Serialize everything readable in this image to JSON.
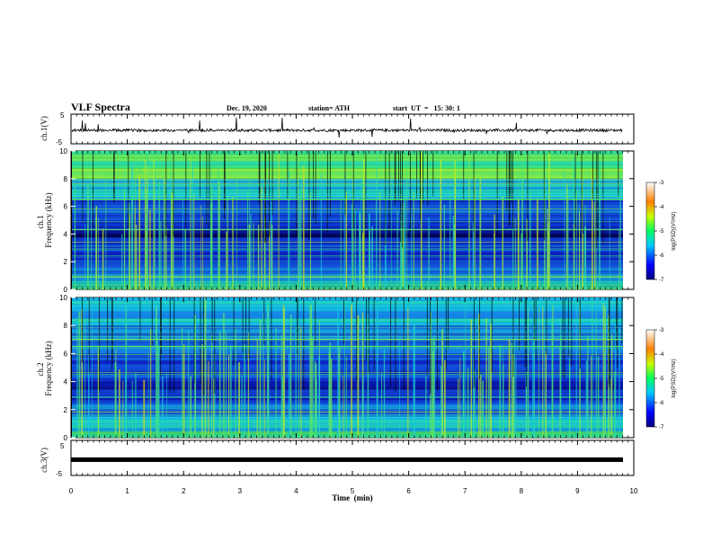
{
  "header": {
    "title": "VLF Spectra",
    "date": "Dec. 19, 2020",
    "station": "station= ATH",
    "start": "start  UT  =   15: 30: 1"
  },
  "colorbar": {
    "label": "log(PSD)(V²/Hz)",
    "ticks": [
      "-3",
      "-4",
      "-5",
      "-6",
      "-7"
    ]
  },
  "colors": {
    "background": "#000000",
    "low": "#1a2fd0",
    "mid": "#16b6e0",
    "high": "#d8f020"
  },
  "chart_data": [
    {
      "type": "line",
      "name_panel": "ch1-waveform",
      "ylabel": "ch.1(V)",
      "ylim": [
        -5,
        5
      ],
      "yticks": [
        "5",
        "-5"
      ],
      "xlim": [
        0,
        10
      ],
      "series": [
        {
          "values_summary": [
            -0.6,
            -0.4,
            -0.5,
            -0.3,
            -0.6,
            -0.4
          ]
        }
      ]
    },
    {
      "type": "heatmap",
      "name_panel": "ch1-spectrogram",
      "ylabel_top": "ch.1",
      "ylabel": "Frequency (kHz)",
      "ylim": [
        0,
        10
      ],
      "yticks": [
        "10",
        "8",
        "6",
        "4",
        "2",
        "0"
      ],
      "xlim": [
        0,
        9.8
      ],
      "bands": [
        {
          "from": 0.0,
          "to": 0.4,
          "level": 0.55
        },
        {
          "from": 0.4,
          "to": 1.0,
          "level": 0.42
        },
        {
          "from": 1.0,
          "to": 2.0,
          "level": 0.28
        },
        {
          "from": 2.0,
          "to": 3.0,
          "level": 0.18
        },
        {
          "from": 3.0,
          "to": 5.0,
          "level": 0.08
        },
        {
          "from": 5.0,
          "to": 6.5,
          "level": 0.22
        },
        {
          "from": 6.5,
          "to": 8.0,
          "level": 0.42
        },
        {
          "from": 8.0,
          "to": 10.0,
          "level": 0.62
        }
      ]
    },
    {
      "type": "heatmap",
      "name_panel": "ch2-spectrogram",
      "ylabel_top": "ch.2",
      "ylabel": "Frequency (kHz)",
      "ylim": [
        0,
        10
      ],
      "yticks": [
        "10",
        "8",
        "6",
        "4",
        "2",
        "0"
      ],
      "xlim": [
        0,
        9.8
      ],
      "bands": [
        {
          "from": 0.0,
          "to": 0.5,
          "level": 0.55
        },
        {
          "from": 0.5,
          "to": 1.5,
          "level": 0.45
        },
        {
          "from": 1.5,
          "to": 2.5,
          "level": 0.3
        },
        {
          "from": 2.5,
          "to": 4.0,
          "level": 0.14
        },
        {
          "from": 4.0,
          "to": 6.0,
          "level": 0.18
        },
        {
          "from": 6.0,
          "to": 8.0,
          "level": 0.3
        },
        {
          "from": 8.0,
          "to": 10.0,
          "level": 0.42
        }
      ]
    },
    {
      "type": "line",
      "name_panel": "ch3-waveform",
      "ylabel": "ch.3(V)",
      "ylim": [
        -5,
        5
      ],
      "yticks": [
        "5",
        "-5"
      ],
      "xlim": [
        0,
        9.8
      ],
      "series": [
        {
          "values_summary": [
            0,
            0
          ]
        }
      ]
    }
  ],
  "xaxis": {
    "label": "Time  (min)",
    "ticks": [
      "0",
      "1",
      "2",
      "3",
      "4",
      "5",
      "6",
      "7",
      "8",
      "9",
      "10"
    ],
    "range": [
      0,
      10
    ]
  }
}
